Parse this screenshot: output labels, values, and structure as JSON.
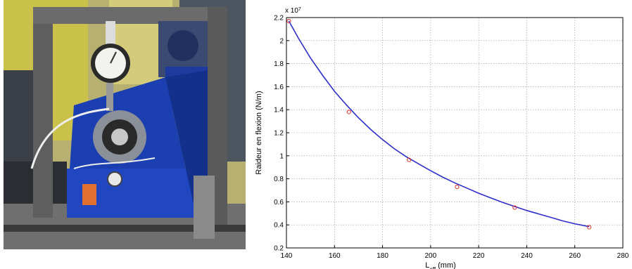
{
  "photo": {
    "description_icon": "test-rig-photo",
    "colors": {
      "frame": "#6b6b6b",
      "machine_body": "#1b3fb0",
      "wall": "#c9c14a",
      "dial_face": "#f2f2ee"
    }
  },
  "chart_data": {
    "type": "line",
    "title": "",
    "xlabel_main": "L",
    "xlabel_sub": "eff",
    "xlabel_unit": " (mm)",
    "ylabel": "Raideur en flexion (N/m)",
    "exponent_label": "x 10",
    "exponent_power": "7",
    "xlim": [
      140,
      280
    ],
    "ylim": [
      0.2,
      2.2
    ],
    "xticks": [
      140,
      160,
      180,
      200,
      220,
      240,
      260,
      280
    ],
    "yticks": [
      0.2,
      0.4,
      0.6,
      0.8,
      1,
      1.2,
      1.4,
      1.6,
      1.8,
      2,
      2.2
    ],
    "xtick_labels": [
      "140",
      "160",
      "180",
      "200",
      "220",
      "240",
      "260",
      "280"
    ],
    "ytick_labels": [
      "0.2",
      "0.4",
      "0.6",
      "0.8",
      "1",
      "1.2",
      "1.4",
      "1.6",
      "1.8",
      "2",
      "2.2"
    ],
    "grid": true,
    "series": [
      {
        "role": "fit-curve",
        "style": "line",
        "color": "#2d2dc8",
        "x": [
          141,
          145,
          150,
          155,
          160,
          165,
          170,
          175,
          180,
          185,
          190,
          195,
          200,
          205,
          210,
          215,
          220,
          225,
          230,
          235,
          240,
          245,
          250,
          255,
          260,
          266
        ],
        "y": [
          2.17,
          2.02,
          1.85,
          1.7,
          1.56,
          1.44,
          1.33,
          1.23,
          1.14,
          1.06,
          0.99,
          0.93,
          0.87,
          0.815,
          0.765,
          0.72,
          0.675,
          0.635,
          0.595,
          0.56,
          0.525,
          0.495,
          0.465,
          0.435,
          0.41,
          0.385
        ]
      },
      {
        "role": "measurements",
        "style": "markers",
        "color": "#e03030",
        "x": [
          141,
          166,
          191,
          211,
          235,
          266
        ],
        "y": [
          2.17,
          1.38,
          0.965,
          0.73,
          0.55,
          0.38
        ]
      }
    ]
  }
}
